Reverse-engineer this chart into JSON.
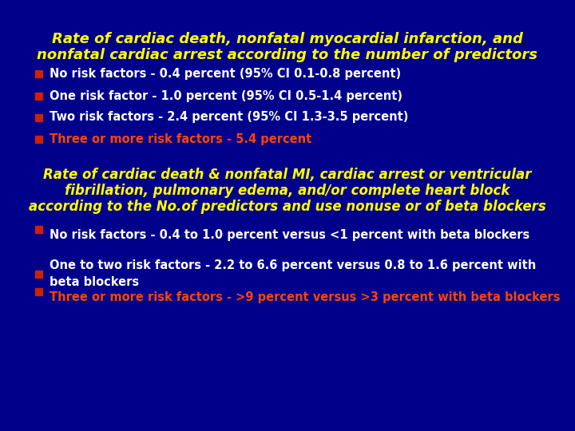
{
  "bg_color": "#00008B",
  "title1_line1": "Rate of cardiac death, nonfatal myocardial infarction, and",
  "title1_line2": "nonfatal cardiac arrest according to the number of predictors",
  "title_color": "#FFFF00",
  "title1_fontsize": 13,
  "bullet_color_normal": "#FFFFFF",
  "bullet_color_highlight": "#FF4500",
  "bullet_marker_color": "#CC2200",
  "bullets1": [
    {
      "text": "No risk factors - 0.4 percent (95% CI 0.1-0.8 percent)",
      "highlight": false
    },
    {
      "text": "One risk factor - 1.0 percent (95% CI 0.5-1.4 percent)",
      "highlight": false
    },
    {
      "text": "Two risk factors - 2.4 percent (95% CI 1.3-3.5 percent)",
      "highlight": false
    },
    {
      "text": "Three or more risk factors - 5.4 percent",
      "highlight": true
    }
  ],
  "title2_line1": "Rate of cardiac death & nonfatal MI, cardiac arrest or ventricular",
  "title2_line2": "fibrillation, pulmonary edema, and/or complete heart block",
  "title2_line3": "according to the No.of predictors and use nonuse or of beta blockers",
  "title2_fontsize": 12,
  "bullets2": [
    {
      "text": "No risk factors - 0.4 to 1.0 percent versus <1 percent with beta blockers",
      "highlight": false
    },
    {
      "text": "One to two risk factors - 2.2 to 6.6 percent versus 0.8 to 1.6 percent with\nbeta blockers",
      "highlight": false
    },
    {
      "text": "Three or more risk factors - >9 percent versus >3 percent with beta blockers",
      "highlight": true
    }
  ],
  "bullet_fontsize": 10.5
}
